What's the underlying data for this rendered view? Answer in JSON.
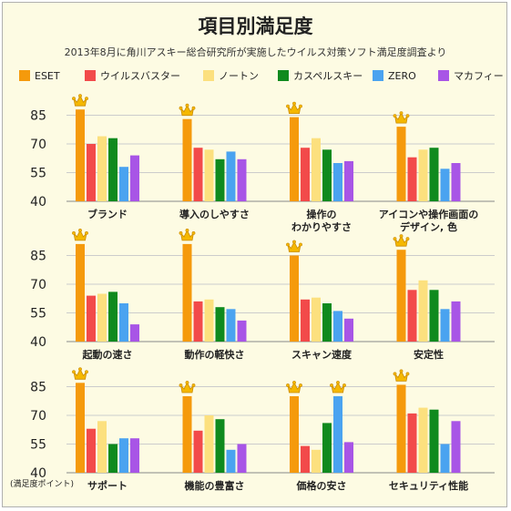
{
  "title": "項目別満足度",
  "subtitle": "2013年8月に角川アスキー総合研究所が実施したウイルス対策ソフト満足度調査より",
  "colors": [
    "#f59a0c",
    "#f24a4a",
    "#fce07e",
    "#0f8a1e",
    "#4aa3f0",
    "#a855e6"
  ],
  "crown_icon": "crown-icon",
  "chart_data": {
    "type": "bar",
    "ylabel": "(満足度ポイント)",
    "ylim": [
      40,
      90
    ],
    "yticks": [
      40,
      55,
      70,
      85
    ],
    "grid": true,
    "legend_placement": "top",
    "series_names": [
      "ESET",
      "ウイルスバスター",
      "ノートン",
      "カスペルスキー",
      "ZERO",
      "マカフィー"
    ],
    "panels": [
      {
        "label": [
          "ブランド"
        ],
        "values": [
          88,
          70,
          74,
          73,
          58,
          64
        ]
      },
      {
        "label": [
          "導入のしやすさ"
        ],
        "values": [
          83,
          68,
          67,
          62,
          66,
          62
        ]
      },
      {
        "label": [
          "操作の",
          "わかりやすさ"
        ],
        "values": [
          84,
          68,
          73,
          67,
          60,
          61
        ]
      },
      {
        "label": [
          "アイコンや操作画面の",
          "デザイン, 色"
        ],
        "values": [
          79,
          63,
          67,
          68,
          57,
          60
        ]
      },
      {
        "label": [
          "起動の速さ"
        ],
        "values": [
          91,
          64,
          65,
          66,
          60,
          49
        ]
      },
      {
        "label": [
          "動作の軽快さ"
        ],
        "values": [
          91,
          61,
          62,
          58,
          57,
          51
        ]
      },
      {
        "label": [
          "スキャン速度"
        ],
        "values": [
          85,
          62,
          63,
          60,
          56,
          52
        ]
      },
      {
        "label": [
          "安定性"
        ],
        "values": [
          88,
          67,
          72,
          67,
          57,
          61
        ]
      },
      {
        "label": [
          "サポート"
        ],
        "values": [
          87,
          63,
          67,
          55,
          58,
          58
        ]
      },
      {
        "label": [
          "機能の豊富さ"
        ],
        "values": [
          80,
          62,
          70,
          68,
          52,
          55
        ]
      },
      {
        "label": [
          "価格の安さ"
        ],
        "values": [
          80,
          54,
          52,
          66,
          80,
          56
        ]
      },
      {
        "label": [
          "セキュリティ性能"
        ],
        "values": [
          86,
          71,
          74,
          73,
          55,
          67
        ]
      }
    ]
  }
}
